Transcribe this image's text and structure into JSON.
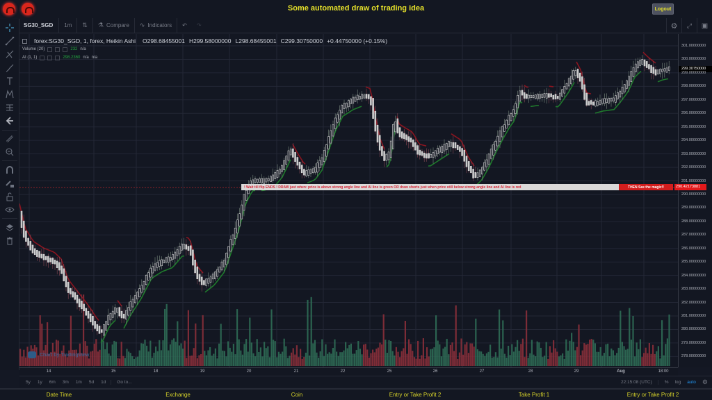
{
  "header": {
    "title": "Some automated draw of trading idea",
    "logout_label": "Logout",
    "logos": [
      "logo-icon",
      "logo-icon"
    ]
  },
  "toolbar": {
    "symbol": "SG30_SGD",
    "interval": "1m",
    "compare_label": "Compare",
    "indicators_label": "Indicators",
    "right_icons": [
      "gear-icon",
      "fullscreen-icon",
      "camera-icon"
    ]
  },
  "left_tools": [
    "crosshair-icon",
    "trendline-icon",
    "pitchfork-icon",
    "brush-icon",
    "text-icon",
    "pattern-icon",
    "measure-icon",
    "back-arrow-icon",
    "ruler-icon",
    "zoom-in-icon",
    "magnet-icon",
    "lock-drawing-icon",
    "unlock-icon",
    "eye-icon",
    "layers-icon",
    "trash-icon"
  ],
  "legend": {
    "title": "forex:SG30_SGD, 1, forex, Heikin Ashi",
    "open": "O298.68455001",
    "high": "H299.58000000",
    "low": "L298.68455001",
    "close": "C299.30750000",
    "change": "+0.44750000 (+0.15%)",
    "volume_label": "Volume (20)",
    "volume_value": "232",
    "volume_na": "n/a",
    "ai_label": "AI (1, 1)",
    "ai_value": "298.2360",
    "ai_na1": "n/a",
    "ai_na2": "n/a"
  },
  "price_axis": {
    "labels": [
      "301.00000000",
      "300.00000000",
      "299.00000000",
      "298.00000000",
      "297.00000000",
      "296.00000000",
      "295.00000000",
      "294.00000000",
      "293.00000000",
      "292.00000000",
      "291.00000000",
      "290.00000000",
      "289.00000000",
      "288.00000000",
      "287.00000000",
      "286.00000000",
      "285.00000000",
      "284.00000000",
      "283.00000000",
      "282.00000000",
      "281.00000000",
      "280.00000000",
      "279.00000000",
      "278.00000000"
    ],
    "current_price": "299.30750000",
    "marker_price": "290.42173881"
  },
  "banner": {
    "text": "!        Wait till flip ENDS  !     DRAW just when:  price is above strong angle line and AI line is green          OR          draw shorts just when price still below strong angle line and AI line is red",
    "cta": "THEN See the magic!!"
  },
  "watermark": "Chart by TradingView",
  "time_axis": {
    "labels": [
      "14",
      "15",
      "18",
      "19",
      "20",
      "21",
      "22",
      "25",
      "26",
      "27",
      "28",
      "29",
      "Aug",
      "18:00"
    ]
  },
  "bottom_bar": {
    "ranges": [
      "5y",
      "1y",
      "6m",
      "3m",
      "1m",
      "5d",
      "1d"
    ],
    "goto": "Go to...",
    "clock": "22:15:08 (UTC)",
    "percent": "%",
    "log": "log",
    "auto": "auto"
  },
  "footer": {
    "items": [
      "Date Time",
      "Exchange",
      "Coin",
      "Entry or Take Profit 2",
      "Take Profit 1",
      "Entry or Take Profit 2"
    ]
  },
  "colors": {
    "accent_yellow": "#e6e12a",
    "up_green": "#26a641",
    "down_red": "#b2222a",
    "banner_red": "#d31d1d",
    "background": "#131722"
  }
}
